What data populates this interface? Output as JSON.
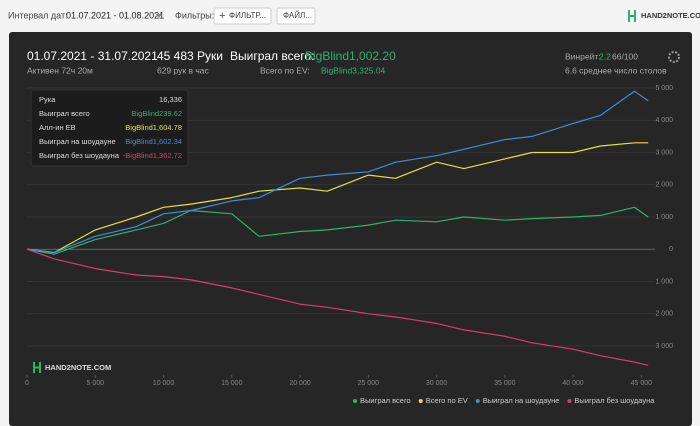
{
  "toolbar": {
    "date_label": "Интервал дат:",
    "date_range": "01.07.2021 - 01.08.2021",
    "filters_label": "Фильтры:",
    "filter_button": "ФИЛЬТР...",
    "file_button": "ФАЙЛ...",
    "logo": "HAND2NOTE.COM"
  },
  "summary": {
    "period": "01.07.2021 - 31.07.2021",
    "active": "Активен 72ч 20м",
    "hands": "45 483 Руки",
    "hands_per_hour": "629 рук в час",
    "won_label": "Выиграл всего:",
    "won_value": "BigBlind1,002.20",
    "ev_label": "Всего по EV:",
    "ev_value": "BigBlind3,325.04",
    "winrate_label": "Винрейт:",
    "winrate_value": "2.2",
    "winrate_hands": "66/100",
    "tables": "6.6 среднее число столов"
  },
  "tooltip": {
    "rows": [
      [
        "Рука",
        "16,336"
      ],
      [
        "Выиграл всего",
        "BigBlind239.62"
      ],
      [
        "Алл-ин EB",
        "BigBlind1,604.78"
      ],
      [
        "Выиграл на шоудауне",
        "BigBlind1,602.34"
      ],
      [
        "Выиграл без шоудауна",
        "-BigBlind1,362.72"
      ]
    ]
  },
  "chart_data": {
    "type": "line",
    "watermark": "HAND2NOTE.COM",
    "x": [
      0,
      2000,
      5000,
      8000,
      10000,
      12000,
      15000,
      17000,
      20000,
      22000,
      25000,
      27000,
      30000,
      32000,
      35000,
      37000,
      40000,
      42000,
      44500,
      45500
    ],
    "series": [
      {
        "name": "Выиграл всего",
        "color": "#2db36c",
        "values": [
          0,
          -150,
          300,
          600,
          800,
          1200,
          1100,
          400,
          550,
          600,
          750,
          900,
          850,
          1000,
          900,
          950,
          1000,
          1050,
          1300,
          1000
        ]
      },
      {
        "name": "Всего по EV",
        "color": "#e5e040",
        "values": [
          0,
          -100,
          600,
          1000,
          1300,
          1400,
          1600,
          1800,
          1900,
          1800,
          2300,
          2200,
          2700,
          2500,
          2800,
          3000,
          3000,
          3200,
          3300,
          3300
        ]
      },
      {
        "name": "Выиграл на шоудауне",
        "color": "#3c8de0",
        "values": [
          0,
          -100,
          400,
          700,
          1100,
          1200,
          1500,
          1600,
          2200,
          2300,
          2400,
          2700,
          2900,
          3100,
          3400,
          3500,
          3900,
          4150,
          4900,
          4600
        ]
      },
      {
        "name": "Выиграл без шоудауна",
        "color": "#e03a6a",
        "values": [
          0,
          -300,
          -600,
          -800,
          -850,
          -950,
          -1200,
          -1400,
          -1700,
          -1800,
          -2000,
          -2100,
          -2300,
          -2500,
          -2700,
          -2900,
          -3100,
          -3300,
          -3500,
          -3600
        ]
      }
    ],
    "xlim": [
      0,
      46000
    ],
    "xticks": [
      0,
      {
        "value": 5000,
        "label": "5 000"
      },
      {
        "value": 10000,
        "label": "10 000"
      },
      {
        "value": 15000,
        "label": "15 000"
      },
      {
        "value": 20000,
        "label": "20 000"
      },
      {
        "value": 25000,
        "label": "25 000"
      },
      {
        "value": 30000,
        "label": "30 000"
      },
      {
        "value": 35000,
        "label": "35 000"
      },
      {
        "value": 40000,
        "label": "40 000"
      },
      {
        "value": 45000,
        "label": "45 000"
      }
    ],
    "ylim": [
      -3900,
      5000
    ],
    "yticks": [
      {
        "value": 5000,
        "label": "5 000"
      },
      {
        "value": 4000,
        "label": "4 000"
      },
      {
        "value": 3000,
        "label": "3 000"
      },
      {
        "value": 2000,
        "label": "2 000"
      },
      {
        "value": 1000,
        "label": "1 000"
      },
      0,
      {
        "value": -1000,
        "label": "1 000"
      },
      {
        "value": -2000,
        "label": "2 000"
      },
      {
        "value": -3000,
        "label": "3 000"
      }
    ],
    "grid": true,
    "legend": "bottom-right"
  }
}
